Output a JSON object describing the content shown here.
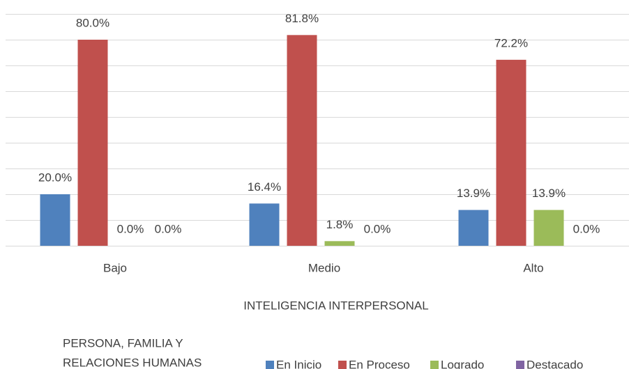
{
  "chart_data": {
    "type": "bar",
    "categories": [
      "Bajo",
      "Medio",
      "Alto"
    ],
    "series": [
      {
        "name": "En Inicio",
        "color": "#4f81bd",
        "values": [
          20.0,
          16.4,
          13.9
        ],
        "value_labels": [
          "20.0%",
          "16.4%",
          "13.9%"
        ]
      },
      {
        "name": "En Proceso",
        "color": "#c0504d",
        "values": [
          80.0,
          81.8,
          72.2
        ],
        "value_labels": [
          "80.0%",
          "81.8%",
          "72.2%"
        ]
      },
      {
        "name": "Logrado",
        "color": "#9bbb59",
        "values": [
          0.0,
          1.8,
          13.9
        ],
        "value_labels": [
          "0.0%",
          "1.8%",
          "13.9%"
        ]
      },
      {
        "name": "Destacado",
        "color": "#8064a2",
        "values": [
          0.0,
          0.0,
          0.0
        ],
        "value_labels": [
          "0.0%",
          "0.0%",
          "0.0%"
        ]
      }
    ],
    "xlabel": "INTELIGENCIA INTERPERSONAL",
    "legend_title": [
      "PERSONA, FAMILIA Y",
      "RELACIONES HUMANAS"
    ],
    "ylim": [
      0,
      90
    ],
    "yticks": [
      0,
      10,
      20,
      30,
      40,
      50,
      60,
      70,
      80,
      90
    ],
    "grid": true,
    "legend": "bottom"
  }
}
